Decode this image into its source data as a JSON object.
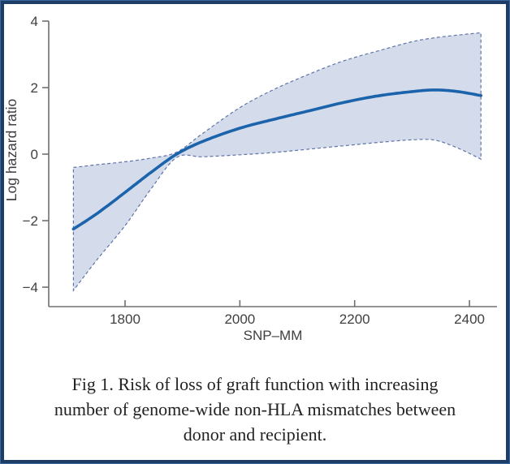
{
  "frame": {
    "outer_line_color": "#3a689f",
    "border_color": "#1d3c66",
    "background": "#ffffff"
  },
  "chart_data": {
    "type": "line",
    "title": "",
    "xlabel": "SNP–MM",
    "ylabel": "Log hazard ratio",
    "x_ticks": [
      1800,
      2000,
      2200,
      2400
    ],
    "y_ticks": [
      4,
      2,
      0,
      -2,
      -4
    ],
    "xlim": [
      1667,
      2448
    ],
    "ylim": [
      -4.585,
      4.0
    ],
    "grid": false,
    "legend_position": "none",
    "x": [
      1710,
      1750,
      1800,
      1845,
      1890,
      1935,
      2000,
      2060,
      2120,
      2180,
      2240,
      2300,
      2340,
      2380,
      2420
    ],
    "series": [
      {
        "name": "Log hazard ratio (point estimate)",
        "style": "solid",
        "values": [
          -2.25,
          -1.8,
          -1.15,
          -0.55,
          0.0,
          0.38,
          0.78,
          1.05,
          1.3,
          1.55,
          1.75,
          1.88,
          1.93,
          1.88,
          1.76
        ]
      },
      {
        "name": "Confidence band lower",
        "style": "dashed",
        "values": [
          -4.1,
          -3.2,
          -2.15,
          -1.05,
          -0.1,
          -0.08,
          -0.02,
          0.05,
          0.15,
          0.25,
          0.35,
          0.43,
          0.42,
          0.18,
          -0.15
        ]
      },
      {
        "name": "Confidence band upper",
        "style": "dashed",
        "values": [
          -0.4,
          -0.32,
          -0.23,
          -0.12,
          0.06,
          0.62,
          1.4,
          1.95,
          2.4,
          2.8,
          3.1,
          3.38,
          3.5,
          3.58,
          3.65
        ]
      }
    ],
    "colors": {
      "line": "#1b63ab",
      "band_fill": "#d4dcec",
      "band_edge": "#5e73a6",
      "axis": "#707070",
      "text": "#3f3f3f"
    }
  },
  "caption": {
    "text": "Fig 1. Risk of loss of graft function with increasing number of genome-wide non-HLA mismatches between donor and recipient."
  }
}
